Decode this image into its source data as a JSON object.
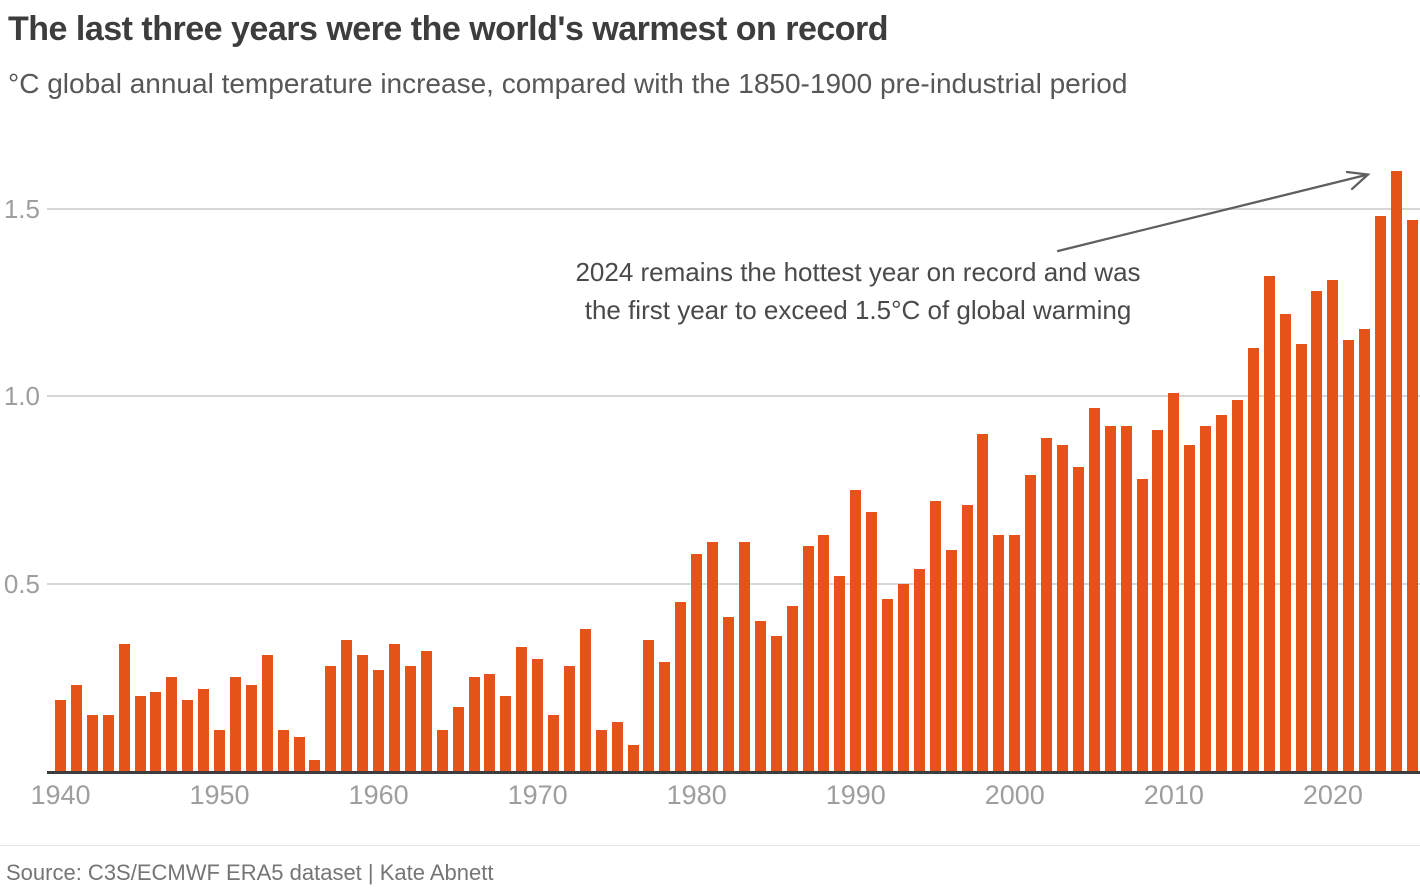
{
  "header": {
    "title": "The last three years were the world's warmest on record",
    "subtitle": "°C global annual temperature increase, compared with the 1850-1900 pre-industrial period"
  },
  "annotation": {
    "line1": "2024 remains the hottest year on record and was",
    "line2": "the first year to exceed 1.5°C of global warming"
  },
  "source": {
    "text": "Source: C3S/ECMWF ERA5 dataset | Kate Abnett"
  },
  "colors": {
    "bar": "#e5531a",
    "grid": "#d6d6d6",
    "baseline": "#3d3d3d",
    "tick_label": "#9e9e9e",
    "title": "#3d3d3d",
    "subtitle": "#575757",
    "annotation_text": "#4a4a4a",
    "arrow": "#5f5f5f",
    "source_text": "#757575",
    "divider": "#e3e3e3"
  },
  "chart_data": {
    "type": "bar",
    "title": "The last three years were the world's warmest on record",
    "xlabel": "",
    "ylabel": "°C global annual temperature increase vs 1850-1900",
    "x": [
      1940,
      1941,
      1942,
      1943,
      1944,
      1945,
      1946,
      1947,
      1948,
      1949,
      1950,
      1951,
      1952,
      1953,
      1954,
      1955,
      1956,
      1957,
      1958,
      1959,
      1960,
      1961,
      1962,
      1963,
      1964,
      1965,
      1966,
      1967,
      1968,
      1969,
      1970,
      1971,
      1972,
      1973,
      1974,
      1975,
      1976,
      1977,
      1978,
      1979,
      1980,
      1981,
      1982,
      1983,
      1984,
      1985,
      1986,
      1987,
      1988,
      1989,
      1990,
      1991,
      1992,
      1993,
      1994,
      1995,
      1996,
      1997,
      1998,
      1999,
      2000,
      2001,
      2002,
      2003,
      2004,
      2005,
      2006,
      2007,
      2008,
      2009,
      2010,
      2011,
      2012,
      2013,
      2014,
      2015,
      2016,
      2017,
      2018,
      2019,
      2020,
      2021,
      2022,
      2023,
      2024,
      2025
    ],
    "values": [
      0.19,
      0.23,
      0.15,
      0.15,
      0.34,
      0.2,
      0.21,
      0.25,
      0.19,
      0.22,
      0.11,
      0.25,
      0.23,
      0.31,
      0.11,
      0.09,
      0.03,
      0.28,
      0.35,
      0.31,
      0.27,
      0.34,
      0.28,
      0.32,
      0.11,
      0.17,
      0.25,
      0.26,
      0.2,
      0.33,
      0.3,
      0.15,
      0.28,
      0.38,
      0.11,
      0.13,
      0.07,
      0.35,
      0.29,
      0.45,
      0.58,
      0.61,
      0.41,
      0.61,
      0.4,
      0.36,
      0.44,
      0.6,
      0.63,
      0.52,
      0.75,
      0.69,
      0.46,
      0.5,
      0.54,
      0.72,
      0.59,
      0.71,
      0.9,
      0.63,
      0.63,
      0.79,
      0.89,
      0.87,
      0.81,
      0.97,
      0.92,
      0.92,
      0.78,
      0.91,
      1.01,
      0.87,
      0.92,
      0.95,
      0.99,
      1.13,
      1.32,
      1.22,
      1.14,
      1.28,
      1.31,
      1.15,
      1.18,
      1.48,
      1.6,
      1.47
    ],
    "xticks": [
      1940,
      1950,
      1960,
      1970,
      1980,
      1990,
      2000,
      2010,
      2020
    ],
    "yticks": [
      0.5,
      1.0,
      1.5
    ],
    "ytick_labels": [
      "0.5",
      "1.0",
      "1.5"
    ],
    "ylim": [
      0,
      1.65
    ],
    "grid": "horizontal",
    "legend": "none",
    "annotation": "2024 remains the hottest year on record and was the first year to exceed 1.5°C of global warming"
  }
}
